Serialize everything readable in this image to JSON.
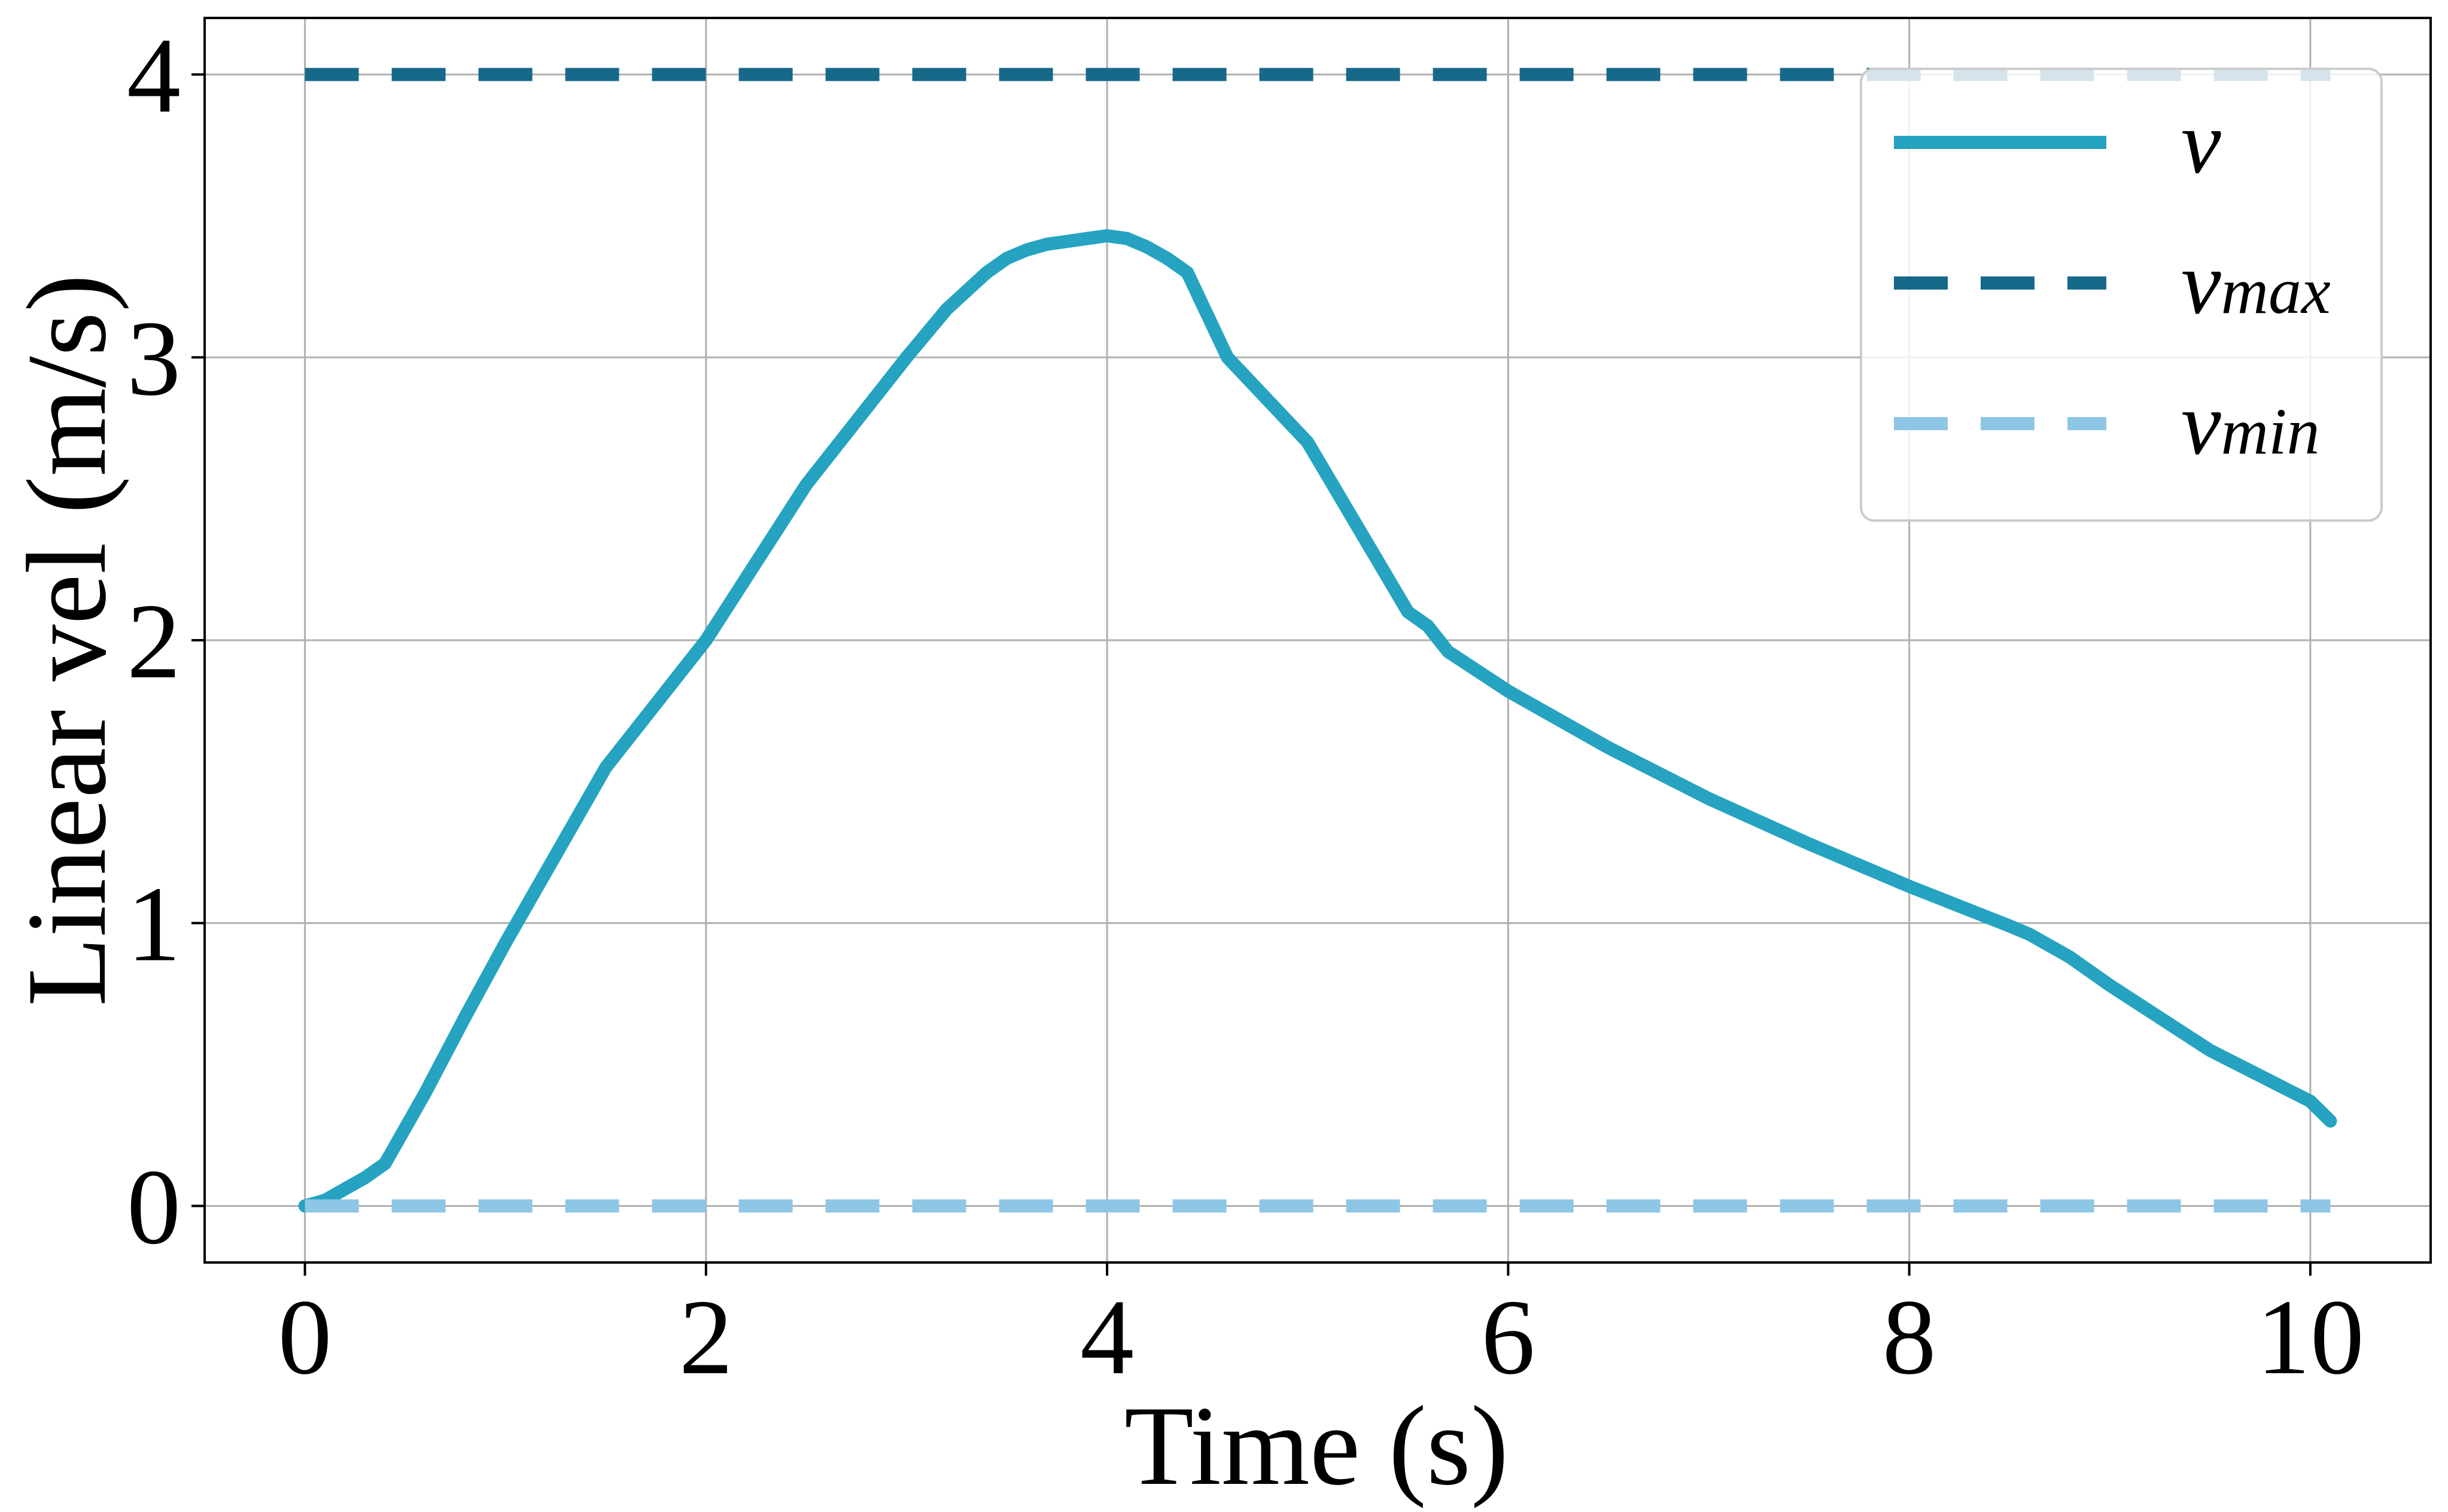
{
  "chart_data": {
    "type": "line",
    "title": "",
    "xlabel": "Time (s)",
    "ylabel": "Linear vel (m/s)",
    "xlim": [
      -0.5,
      10.6
    ],
    "ylim": [
      -0.2,
      4.2
    ],
    "xticks": [
      0,
      2,
      4,
      6,
      8,
      10
    ],
    "yticks": [
      0,
      1,
      2,
      3,
      4
    ],
    "xtick_labels": [
      "0",
      "2",
      "4",
      "6",
      "8",
      "10"
    ],
    "ytick_labels": [
      "0",
      "1",
      "2",
      "3",
      "4"
    ],
    "grid": true,
    "legend_position": "top-right",
    "series": [
      {
        "key": "v",
        "name": "v",
        "style": "solid",
        "color": "#25a3c1",
        "x": [
          0,
          0.1,
          0.2,
          0.3,
          0.4,
          0.6,
          0.8,
          1.0,
          1.5,
          2.0,
          2.5,
          3.0,
          3.2,
          3.4,
          3.5,
          3.6,
          3.7,
          3.8,
          3.9,
          4.0,
          4.1,
          4.2,
          4.3,
          4.4,
          4.6,
          5.0,
          5.5,
          5.6,
          5.7,
          6.0,
          6.5,
          7.0,
          7.5,
          8.0,
          8.5,
          8.6,
          8.7,
          8.8,
          9.0,
          9.5,
          10.0,
          10.1
        ],
        "y": [
          0.0,
          0.02,
          0.06,
          0.1,
          0.15,
          0.4,
          0.67,
          0.93,
          1.55,
          2.0,
          2.55,
          3.0,
          3.17,
          3.3,
          3.35,
          3.38,
          3.4,
          3.41,
          3.42,
          3.43,
          3.42,
          3.39,
          3.35,
          3.3,
          3.0,
          2.7,
          2.1,
          2.05,
          1.96,
          1.82,
          1.62,
          1.44,
          1.28,
          1.13,
          0.99,
          0.96,
          0.92,
          0.88,
          0.78,
          0.55,
          0.37,
          0.3
        ]
      },
      {
        "key": "vmax",
        "name": "v",
        "name_sub": "max",
        "style": "dashed",
        "color": "#17698a",
        "x": [
          0,
          10.1
        ],
        "y": [
          4,
          4
        ]
      },
      {
        "key": "vmin",
        "name": "v",
        "name_sub": "min",
        "style": "dashed",
        "color": "#8ec6e6",
        "x": [
          0,
          10.1
        ],
        "y": [
          0,
          0
        ]
      }
    ]
  }
}
